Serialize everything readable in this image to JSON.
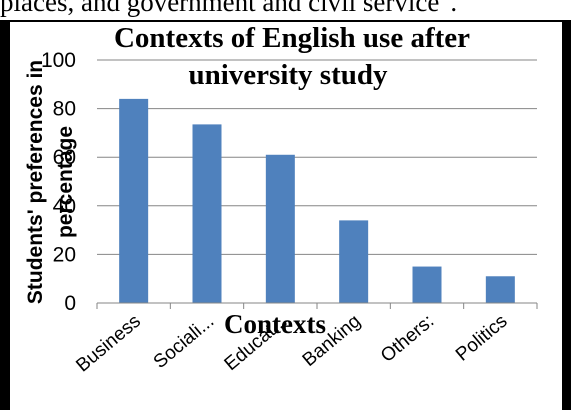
{
  "caption_fragment": "places, and government and civil service\".",
  "chart_data": {
    "type": "bar",
    "title_lines": [
      "Contexts of English use after",
      "university study"
    ],
    "xlabel": "Contexts",
    "ylabel_lines": [
      "Students' preferences in",
      "percentage"
    ],
    "categories": [
      "Business",
      "Sociali...",
      "Educat...",
      "Banking",
      "Others:",
      "Politics"
    ],
    "values": [
      84,
      73.5,
      61,
      34,
      15,
      11
    ],
    "ylim": [
      0,
      100
    ],
    "yticks": [
      0,
      20,
      40,
      60,
      80,
      100
    ],
    "grid": true,
    "legend": "none",
    "bar_color": "#4F81BD",
    "grid_color": "#868686"
  }
}
